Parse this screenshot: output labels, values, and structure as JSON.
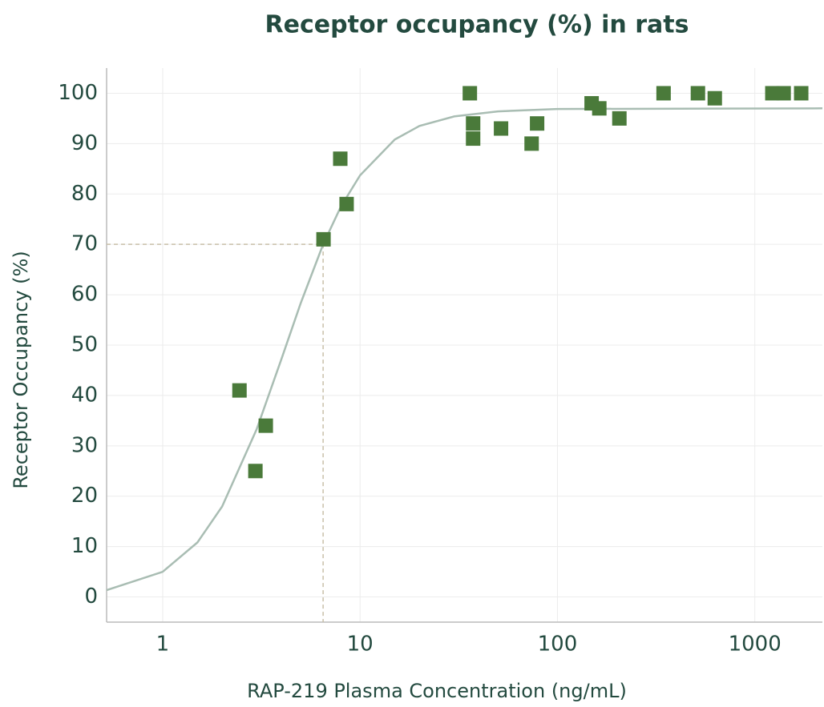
{
  "chart_data": {
    "type": "scatter",
    "title": "Receptor occupancy (%) in rats",
    "x_label": "RAP-219 Plasma Concentration (ng/mL)",
    "y_label": "Receptor Occupancy (%)",
    "x_scale": "log",
    "xlim": [
      0.52,
      2200
    ],
    "ylim": [
      -5,
      105
    ],
    "xticks": [
      1,
      10,
      100,
      1000
    ],
    "yticks": [
      0,
      10,
      20,
      30,
      40,
      50,
      60,
      70,
      80,
      90,
      100
    ],
    "grid": true,
    "points": {
      "color": "#4a7a3a",
      "x": [
        2.45,
        2.95,
        3.33,
        6.53,
        7.94,
        8.55,
        36,
        37.4,
        37.4,
        51.8,
        74,
        78.9,
        149,
        163,
        206,
        345,
        515,
        627,
        1227,
        1400,
        1718
      ],
      "values": [
        41,
        25,
        34,
        71,
        87,
        78,
        100,
        94,
        91,
        93,
        90,
        94,
        98,
        97,
        95,
        100,
        100,
        99,
        100,
        100,
        100
      ]
    },
    "fit": {
      "color": "#a9bdb3",
      "x": [
        0.52,
        1,
        1.5,
        2,
        3,
        4,
        5,
        6.5,
        8,
        10,
        15,
        20,
        30,
        50,
        100,
        2200
      ],
      "values": [
        1.35,
        4.99,
        10.81,
        17.96,
        33.38,
        47.27,
        58.3,
        69.98,
        77.5,
        83.7,
        90.8,
        93.5,
        95.4,
        96.4,
        96.87,
        97
      ]
    },
    "reference": {
      "x": 6.5,
      "y": 70,
      "color": "#c8bfa8"
    }
  }
}
